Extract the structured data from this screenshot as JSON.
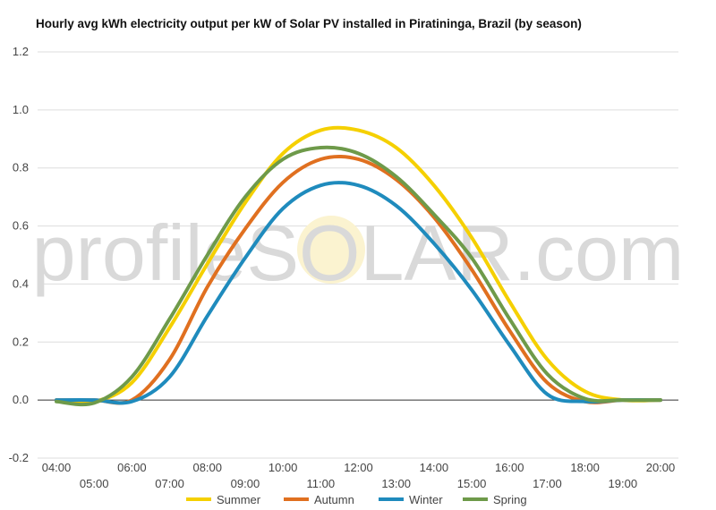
{
  "chart_data": {
    "type": "line",
    "title": "Hourly avg kWh electricity output per kW of Solar PV installed in Piratininga, Brazil (by season)",
    "xlabel": "",
    "ylabel": "",
    "ylim": [
      -0.2,
      1.2
    ],
    "yticks": [
      "-0.2",
      "0.0",
      "0.2",
      "0.4",
      "0.6",
      "0.8",
      "1.0",
      "1.2"
    ],
    "grid": true,
    "legend_position": "bottom",
    "watermark": "profileSOLAR.com",
    "x": [
      "04:00",
      "05:00",
      "06:00",
      "07:00",
      "08:00",
      "09:00",
      "10:00",
      "11:00",
      "12:00",
      "13:00",
      "14:00",
      "15:00",
      "16:00",
      "17:00",
      "18:00",
      "19:00",
      "20:00"
    ],
    "series": [
      {
        "name": "Summer",
        "color": "#f5d000",
        "values": [
          0.0,
          -0.005,
          0.06,
          0.25,
          0.47,
          0.68,
          0.85,
          0.93,
          0.93,
          0.87,
          0.74,
          0.56,
          0.34,
          0.14,
          0.03,
          0.0,
          0.0
        ]
      },
      {
        "name": "Autumn",
        "color": "#e07020",
        "values": [
          0.0,
          0.0,
          0.0,
          0.14,
          0.39,
          0.59,
          0.75,
          0.83,
          0.83,
          0.76,
          0.63,
          0.45,
          0.24,
          0.06,
          -0.005,
          0.0,
          0.0
        ]
      },
      {
        "name": "Winter",
        "color": "#1f8bbd",
        "values": [
          0.0,
          0.0,
          -0.005,
          0.08,
          0.29,
          0.49,
          0.66,
          0.74,
          0.74,
          0.67,
          0.54,
          0.38,
          0.19,
          0.02,
          -0.005,
          0.0,
          0.0
        ]
      },
      {
        "name": "Spring",
        "color": "#6e9a4a",
        "values": [
          -0.005,
          -0.01,
          0.08,
          0.28,
          0.5,
          0.7,
          0.83,
          0.87,
          0.85,
          0.77,
          0.64,
          0.49,
          0.28,
          0.09,
          0.005,
          0.0,
          0.0
        ]
      }
    ]
  }
}
